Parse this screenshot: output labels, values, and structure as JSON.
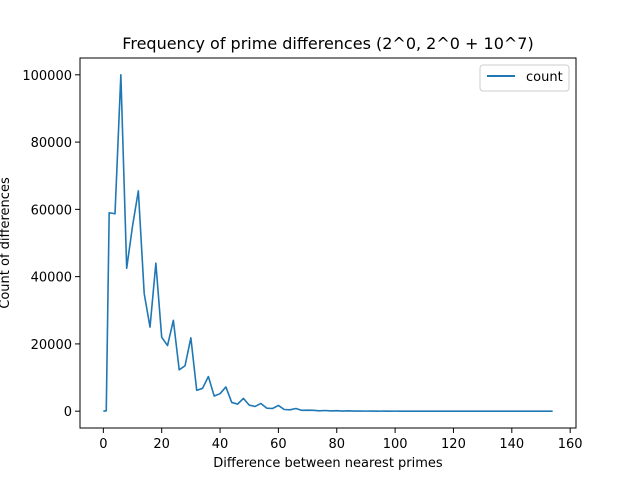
{
  "chart_data": {
    "type": "line",
    "title": "Frequency of prime differences (2^0, 2^0 + 10^7)",
    "xlabel": "Difference between nearest primes",
    "ylabel": "Count of differences",
    "xlim": [
      -8,
      162
    ],
    "ylim": [
      -5000,
      105000
    ],
    "xticks": [
      0,
      20,
      40,
      60,
      80,
      100,
      120,
      140,
      160
    ],
    "yticks": [
      0,
      20000,
      40000,
      60000,
      80000,
      100000
    ],
    "grid": false,
    "legend": {
      "placement": "top-right",
      "entries": [
        "count"
      ]
    },
    "series": [
      {
        "name": "count",
        "color": "#1f77b4",
        "x": [
          0,
          1,
          2,
          4,
          6,
          8,
          10,
          12,
          14,
          16,
          18,
          20,
          22,
          24,
          26,
          28,
          30,
          32,
          34,
          36,
          38,
          40,
          42,
          44,
          46,
          48,
          50,
          52,
          54,
          56,
          58,
          60,
          62,
          64,
          66,
          68,
          70,
          72,
          74,
          76,
          78,
          80,
          82,
          84,
          86,
          88,
          90,
          92,
          94,
          96,
          98,
          100,
          102,
          104,
          106,
          108,
          110,
          112,
          114,
          116,
          118,
          120,
          122,
          124,
          126,
          128,
          130,
          132,
          134,
          136,
          138,
          140,
          142,
          144,
          146,
          148,
          150,
          152,
          154
        ],
        "y": [
          0,
          100,
          59000,
          58700,
          100000,
          42500,
          55000,
          65500,
          35000,
          25000,
          44000,
          22000,
          19500,
          27000,
          12300,
          13500,
          21800,
          6200,
          6800,
          10300,
          4500,
          5200,
          7200,
          2600,
          2100,
          3800,
          1800,
          1400,
          2300,
          900,
          800,
          1700,
          500,
          400,
          800,
          250,
          300,
          250,
          100,
          200,
          60,
          150,
          40,
          110,
          20,
          50,
          15,
          40,
          10,
          20,
          8,
          15,
          5,
          8,
          3,
          5,
          2,
          3,
          1,
          2,
          1,
          1,
          1,
          1,
          0,
          1,
          0,
          0,
          0,
          0,
          0,
          0,
          0,
          0,
          0,
          0,
          0,
          0,
          1
        ]
      }
    ]
  }
}
